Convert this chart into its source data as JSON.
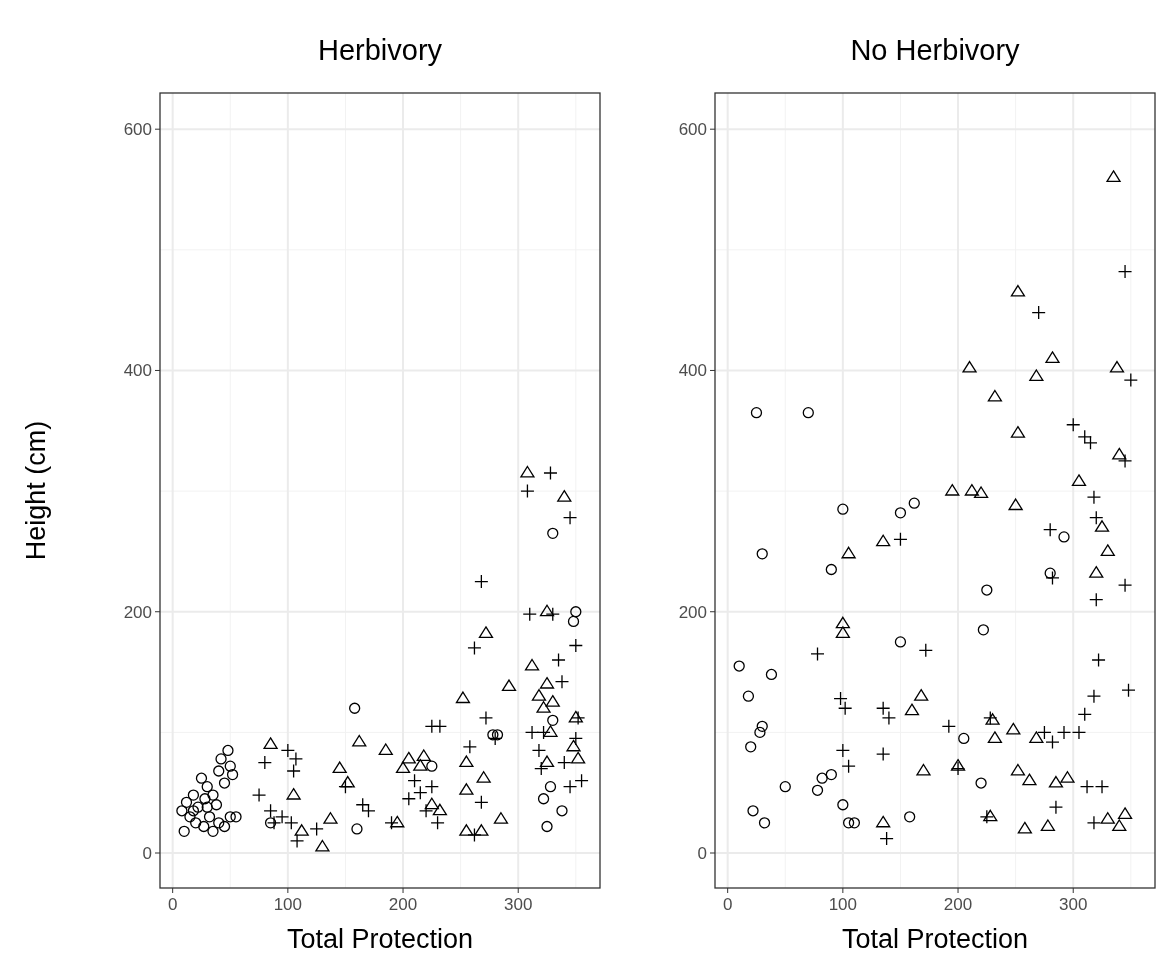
{
  "chart_data": [
    {
      "type": "scatter",
      "title": "Herbivory",
      "xlabel": "Total Protection",
      "ylabel": "Height (cm)",
      "xlim": [
        -11,
        371
      ],
      "ylim": [
        -29,
        630
      ],
      "xticks": [
        0,
        100,
        200,
        300
      ],
      "yticks": [
        0,
        200,
        400,
        600
      ],
      "grid": true,
      "series": [
        {
          "color": "#000000",
          "marker": "circle",
          "x": [
            8,
            10,
            12,
            15,
            18,
            20,
            22,
            25,
            27,
            28,
            30,
            32,
            35,
            35,
            38,
            40,
            40,
            42,
            45,
            45,
            48,
            50,
            50,
            52,
            55,
            18,
            30,
            85,
            158,
            160,
            225,
            278,
            282,
            322,
            328,
            325,
            338,
            330,
            350,
            348,
            330
          ],
          "values": [
            35,
            18,
            42,
            30,
            48,
            25,
            38,
            62,
            22,
            45,
            55,
            30,
            18,
            48,
            40,
            25,
            68,
            78,
            22,
            58,
            85,
            30,
            72,
            65,
            30,
            35,
            38,
            25,
            120,
            20,
            72,
            98,
            98,
            45,
            55,
            22,
            35,
            265,
            200,
            192,
            110
          ]
        },
        {
          "color": "#000000",
          "marker": "triangle",
          "x": [
            85,
            105,
            112,
            130,
            137,
            145,
            152,
            162,
            185,
            195,
            200,
            205,
            215,
            218,
            225,
            232,
            252,
            255,
            255,
            255,
            268,
            270,
            272,
            285,
            292,
            308,
            312,
            318,
            325,
            325,
            322,
            330,
            340,
            348,
            350,
            352,
            328,
            325
          ],
          "values": [
            90,
            48,
            18,
            5,
            28,
            70,
            58,
            92,
            85,
            25,
            70,
            78,
            72,
            80,
            40,
            35,
            128,
            75,
            52,
            18,
            18,
            62,
            182,
            28,
            138,
            315,
            155,
            130,
            200,
            140,
            120,
            125,
            295,
            88,
            112,
            78,
            100,
            75
          ]
        },
        {
          "color": "#000000",
          "marker": "cross",
          "x": [
            75,
            80,
            85,
            88,
            95,
            100,
            105,
            107,
            103,
            108,
            125,
            150,
            165,
            170,
            190,
            205,
            210,
            215,
            220,
            225,
            230,
            225,
            232,
            258,
            262,
            262,
            268,
            272,
            268,
            280,
            308,
            310,
            312,
            318,
            320,
            328,
            335,
            338,
            340,
            345,
            345,
            350,
            352,
            355,
            350,
            330,
            322
          ],
          "values": [
            48,
            75,
            35,
            25,
            30,
            85,
            68,
            78,
            25,
            10,
            20,
            55,
            40,
            35,
            25,
            45,
            60,
            50,
            35,
            55,
            25,
            105,
            105,
            88,
            15,
            170,
            225,
            112,
            42,
            95,
            300,
            198,
            100,
            85,
            70,
            315,
            160,
            142,
            75,
            55,
            278,
            172,
            112,
            60,
            95,
            198,
            100
          ]
        }
      ]
    },
    {
      "type": "scatter",
      "title": "No Herbivory",
      "xlabel": "Total Protection",
      "xlim": [
        -11,
        371
      ],
      "ylim": [
        -29,
        630
      ],
      "xticks": [
        0,
        100,
        200,
        300
      ],
      "yticks": [
        0,
        200,
        400,
        600
      ],
      "grid": true,
      "series": [
        {
          "color": "#000000",
          "marker": "circle",
          "x": [
            10,
            18,
            20,
            22,
            25,
            28,
            30,
            30,
            32,
            38,
            50,
            70,
            78,
            82,
            90,
            90,
            100,
            100,
            105,
            110,
            150,
            150,
            158,
            162,
            205,
            220,
            222,
            225,
            280,
            292
          ],
          "values": [
            155,
            130,
            88,
            35,
            365,
            100,
            105,
            248,
            25,
            148,
            55,
            365,
            52,
            62,
            65,
            235,
            285,
            40,
            25,
            25,
            175,
            282,
            30,
            290,
            95,
            58,
            185,
            218,
            232,
            262
          ]
        },
        {
          "color": "#000000",
          "marker": "triangle",
          "x": [
            100,
            100,
            105,
            135,
            135,
            160,
            168,
            170,
            195,
            200,
            210,
            212,
            220,
            232,
            230,
            232,
            228,
            248,
            250,
            252,
            252,
            252,
            258,
            262,
            268,
            268,
            278,
            282,
            285,
            295,
            305,
            320,
            325,
            330,
            335,
            338,
            340,
            340,
            345,
            330
          ],
          "values": [
            182,
            190,
            248,
            258,
            25,
            118,
            130,
            68,
            300,
            72,
            402,
            300,
            298,
            378,
            110,
            95,
            30,
            102,
            288,
            348,
            465,
            68,
            20,
            60,
            395,
            95,
            22,
            410,
            58,
            62,
            308,
            232,
            270,
            250,
            560,
            402,
            330,
            22,
            32,
            28
          ]
        },
        {
          "color": "#000000",
          "marker": "cross",
          "x": [
            78,
            98,
            100,
            102,
            105,
            135,
            135,
            140,
            138,
            150,
            172,
            192,
            200,
            228,
            225,
            270,
            275,
            280,
            282,
            282,
            292,
            285,
            300,
            310,
            315,
            318,
            320,
            320,
            322,
            318,
            310,
            305,
            312,
            318,
            325,
            345,
            348,
            350,
            345,
            345
          ],
          "values": [
            165,
            128,
            85,
            120,
            72,
            120,
            82,
            112,
            12,
            260,
            168,
            105,
            70,
            112,
            30,
            448,
            100,
            268,
            228,
            92,
            100,
            38,
            355,
            345,
            340,
            295,
            278,
            210,
            160,
            130,
            115,
            100,
            55,
            25,
            55,
            482,
            135,
            392,
            222,
            325
          ]
        }
      ]
    }
  ]
}
